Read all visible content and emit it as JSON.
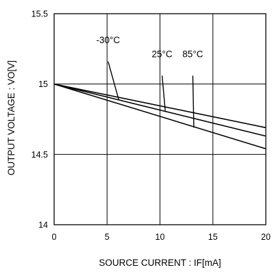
{
  "chart_data": {
    "type": "line",
    "title": "",
    "xlabel": "SOURCE CURRENT : IF[mA]",
    "ylabel": "OUTPUT VOLTAGE : VO[V]",
    "xlim": [
      0,
      20
    ],
    "ylim": [
      14,
      15.5
    ],
    "x_ticks": [
      0,
      5,
      10,
      15,
      20
    ],
    "y_ticks": [
      14,
      14.5,
      15,
      15.5
    ],
    "x_tick_labels": [
      "0",
      "5",
      "10",
      "15",
      "20"
    ],
    "y_tick_labels": [
      "14",
      "14.5",
      "15",
      "15.5"
    ],
    "grid": true,
    "series": [
      {
        "name": "-30°C",
        "x": [
          0,
          20
        ],
        "y": [
          15.0,
          14.69
        ]
      },
      {
        "name": "25°C",
        "x": [
          0,
          20
        ],
        "y": [
          15.0,
          14.63
        ]
      },
      {
        "name": "85°C",
        "x": [
          0,
          20
        ],
        "y": [
          15.0,
          14.54
        ]
      }
    ],
    "annotations": [
      {
        "series": 0,
        "text": "-30°C",
        "label_x": 5.1,
        "label_y": 15.29,
        "line_start": [
          5.1,
          15.16
        ],
        "line_end": [
          6.1,
          14.89
        ]
      },
      {
        "series": 1,
        "text": "25°C",
        "label_x": 10.2,
        "label_y": 15.19,
        "line_start": [
          10.2,
          15.06
        ],
        "line_end": [
          10.5,
          14.81
        ]
      },
      {
        "series": 2,
        "text": "85°C",
        "label_x": 13.1,
        "label_y": 15.19,
        "line_start": [
          13.1,
          15.06
        ],
        "line_end": [
          13.2,
          14.69
        ]
      }
    ]
  }
}
